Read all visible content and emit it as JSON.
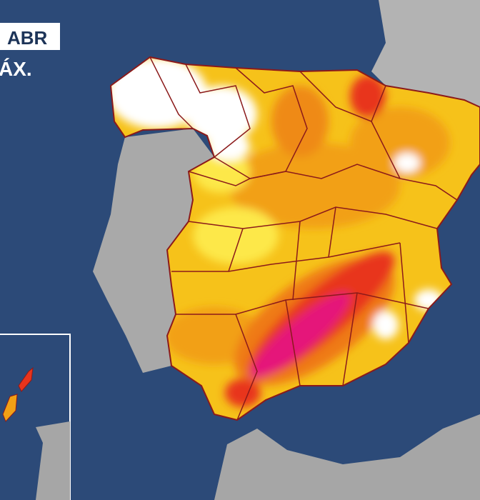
{
  "labels": {
    "badge": "ABR",
    "subtitle": "ÁX."
  }
}
